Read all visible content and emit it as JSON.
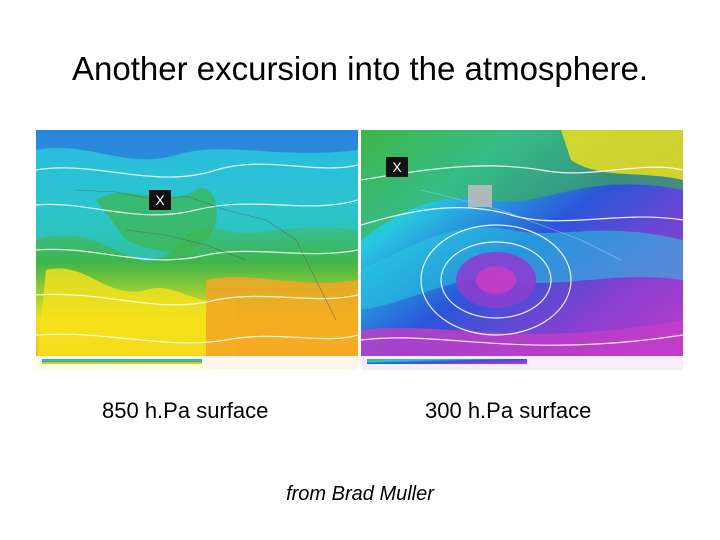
{
  "title": "Another excursion into the atmosphere.",
  "panels": [
    {
      "name": "850-hpa",
      "caption": "850 h.Pa surface",
      "marker": "X"
    },
    {
      "name": "300-hpa",
      "caption": "300 h.Pa surface",
      "marker": "X"
    }
  ],
  "credit": "from Brad Muller",
  "colors": {
    "background": "#ffffff",
    "warm": "#f6e21c",
    "orange": "#f5a623",
    "green": "#3fb54a",
    "cyan": "#27c8e0",
    "blue": "#2a56d8",
    "purple": "#8a3fd0",
    "magenta": "#c33dc8"
  }
}
